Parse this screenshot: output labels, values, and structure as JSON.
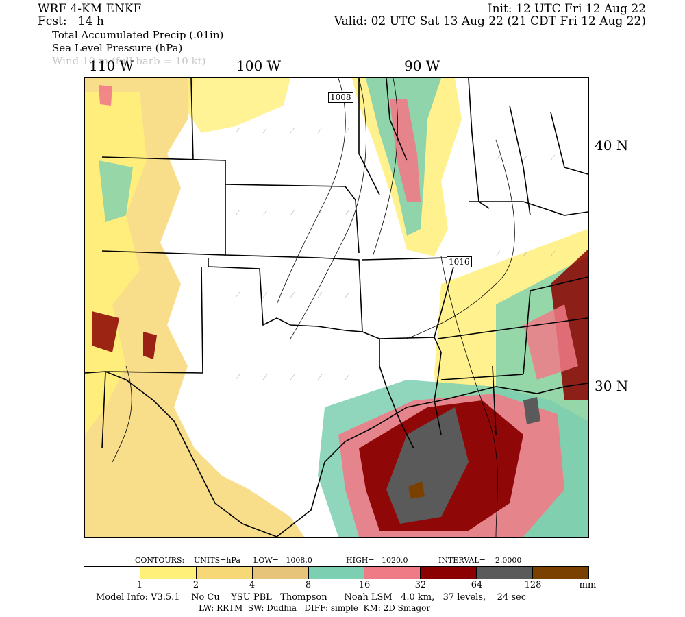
{
  "header": {
    "model_title": "WRF 4-KM ENKF",
    "forecast": "Fcst:   14 h",
    "init": "Init: 12 UTC Fri 12 Aug 22",
    "valid": "Valid: 02 UTC Sat 13 Aug 22 (21 CDT Fri 12 Aug 22)",
    "field1": "Total Accumulated Precip (.01in)",
    "field2": "Sea Level Pressure (hPa)",
    "field3": "Wind 10 m (full barb = 10 kt)"
  },
  "axes": {
    "lon_labels": [
      "110 W",
      "100 W",
      "90 W"
    ],
    "lat_labels": [
      "40 N",
      "30 N"
    ]
  },
  "contour_labels": [
    "1008",
    "1016"
  ],
  "contours_info": {
    "label": "CONTOURS:",
    "units": "UNITS=hPa",
    "low": "LOW=   1008.0",
    "high": "HIGH=   1020.0",
    "interval": "INTERVAL=    2.0000"
  },
  "colorbar": {
    "colors": [
      "#ffffff",
      "#fff07a",
      "#f7d877",
      "#e6c47a",
      "#7ccfb1",
      "#ef7b87",
      "#8b0000",
      "#5a5a5a",
      "#7a4000"
    ],
    "ticks": [
      "1",
      "2",
      "4",
      "8",
      "16",
      "32",
      "64",
      "128"
    ],
    "unit": "mm"
  },
  "model_info": {
    "line1": "Model Info: V3.5.1    No Cu    YSU PBL   Thompson      Noah LSM   4.0 km,   37 levels,    24 sec",
    "line2": "LW: RRTM  SW: Dudhia   DIFF: simple  KM: 2D Smagor"
  }
}
